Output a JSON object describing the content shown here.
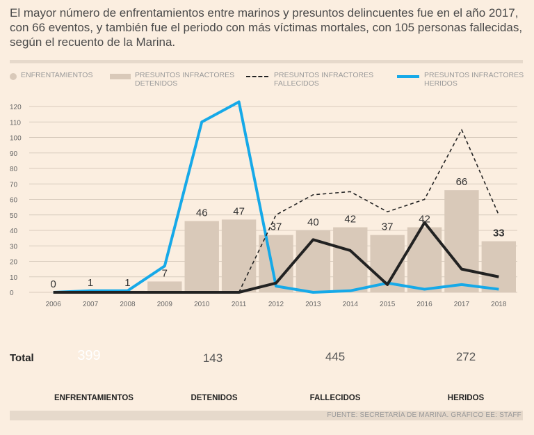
{
  "intro": "El mayor número de enfrentamientos entre marinos y presuntos delincuentes fue en el año 2017, con 66 eventos, y también fue el periodo con más víctimas mortales, con 105 personas fallecidas, según el recuento de la Marina.",
  "legend": {
    "enfrentamientos": "ENFRENTAMIENTOS",
    "detenidos": "PRESUNTOS INFRACTORES DETENIDOS",
    "fallecidos": "PRESUNTOS INFRACTORES FALLECIDOS",
    "heridos": "PRESUNTOS INFRACTORES HERIDOS"
  },
  "colors": {
    "bar": "#d9c9b9",
    "heridos": "#16a9e8",
    "detenidos": "#222222",
    "fallecidos": "#222222",
    "primary_circle": "#16a9e8",
    "secondary_circle": "#d9c9b9"
  },
  "chart_data": {
    "type": "bar",
    "title": "",
    "xlabel": "",
    "ylabel": "",
    "ylim": [
      0,
      120
    ],
    "yticks": [
      0,
      10,
      20,
      30,
      40,
      50,
      60,
      70,
      80,
      90,
      100,
      110,
      120
    ],
    "categories": [
      "2006",
      "2007",
      "2008",
      "2009",
      "2010",
      "2011",
      "2012",
      "2013",
      "2014",
      "2015",
      "2016",
      "2017",
      "2018"
    ],
    "bar_labels": [
      "0",
      "1",
      "1",
      "7",
      "46",
      "47",
      "37",
      "40",
      "42",
      "37",
      "42",
      "66",
      "33"
    ],
    "series": [
      {
        "name": "ENFRENTAMIENTOS",
        "type": "bar",
        "values": [
          0,
          1,
          1,
          7,
          46,
          47,
          37,
          40,
          42,
          37,
          42,
          66,
          33
        ]
      },
      {
        "name": "PRESUNTOS INFRACTORES DETENIDOS",
        "type": "line",
        "style": "solid-dark",
        "values": [
          0,
          0,
          0,
          0,
          0,
          0,
          6,
          34,
          27,
          5,
          45,
          15,
          10
        ]
      },
      {
        "name": "PRESUNTOS INFRACTORES FALLECIDOS",
        "type": "line",
        "style": "dashed",
        "values": [
          null,
          null,
          null,
          null,
          null,
          0,
          50,
          63,
          65,
          52,
          60,
          105,
          50
        ]
      },
      {
        "name": "PRESUNTOS INFRACTORES HERIDOS",
        "type": "line",
        "style": "solid-blue",
        "values": [
          0,
          1,
          1,
          17,
          110,
          123,
          4,
          0,
          1,
          6,
          2,
          5,
          2
        ]
      }
    ]
  },
  "totals": {
    "label": "Total",
    "items": [
      {
        "name": "ENFRENTAMIENTOS",
        "value": "399"
      },
      {
        "name": "DETENIDOS",
        "value": "143"
      },
      {
        "name": "FALLECIDOS",
        "value": "445"
      },
      {
        "name": "HERIDOS",
        "value": "272"
      }
    ]
  },
  "source": "FUENTE: SECRETARÍA DE MARINA. GRÁFICO EE: STAFF"
}
